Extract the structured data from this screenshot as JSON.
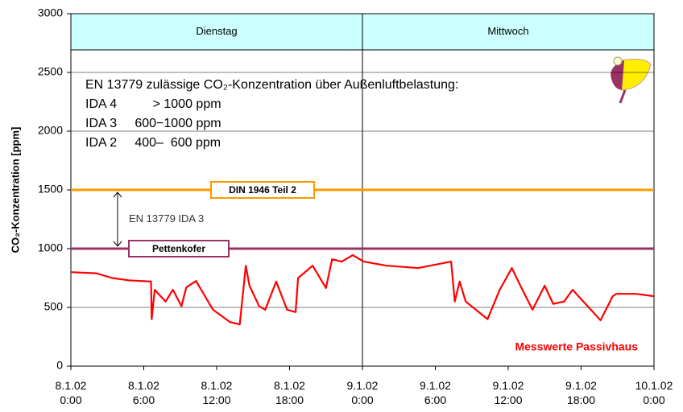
{
  "chart_data": {
    "type": "line",
    "y_label": "CO₂-Konzentration [ppm]",
    "x": [
      0,
      2.1,
      3.4,
      4.8,
      6.6,
      6.65,
      6.9,
      7.8,
      8.4,
      9.1,
      9.5,
      10.3,
      11.7,
      13.1,
      13.9,
      14.4,
      14.7,
      15.5,
      16.0,
      16.9,
      17.8,
      18.5,
      18.7,
      19.9,
      21.0,
      21.5,
      22.3,
      23.2,
      24.1,
      26.0,
      28.6,
      31.3,
      31.6,
      32.0,
      32.5,
      34.3,
      35.3,
      36.3,
      37.0,
      38.0,
      39.0,
      39.7,
      40.6,
      41.3,
      43.6,
      44.6,
      44.9,
      46.5,
      48
    ],
    "series": [
      {
        "name": "Messwerte Passivhaus",
        "color": "#ff0000",
        "values": [
          800,
          790,
          750,
          730,
          720,
          400,
          650,
          550,
          650,
          510,
          670,
          725,
          480,
          375,
          355,
          855,
          685,
          510,
          480,
          720,
          480,
          460,
          750,
          855,
          665,
          910,
          890,
          945,
          890,
          855,
          835,
          890,
          550,
          720,
          550,
          400,
          650,
          835,
          685,
          480,
          685,
          530,
          550,
          650,
          390,
          595,
          615,
          615,
          595
        ]
      }
    ],
    "xlim": [
      0,
      48
    ],
    "xticks": [
      {
        "value": 0,
        "label": "8.1.02\n0:00"
      },
      {
        "value": 6,
        "label": "8.1.02\n6:00"
      },
      {
        "value": 12,
        "label": "8.1.02\n12:00"
      },
      {
        "value": 18,
        "label": "8.1.02\n18:00"
      },
      {
        "value": 24,
        "label": "9.1.02\n0:00"
      },
      {
        "value": 30,
        "label": "9.1.02\n6:00"
      },
      {
        "value": 36,
        "label": "9.1.02\n12:00"
      },
      {
        "value": 42,
        "label": "9.1.02\n18:00"
      },
      {
        "value": 48,
        "label": "10.1.02\n0:00"
      }
    ],
    "ylim": [
      0,
      3000
    ],
    "yticks": [
      0,
      500,
      1000,
      1500,
      2000,
      2500,
      3000
    ],
    "grid": true,
    "days": [
      {
        "label": "Dienstag",
        "from": 0,
        "to": 24
      },
      {
        "label": "Mittwoch",
        "from": 24,
        "to": 48
      }
    ],
    "reference_lines": [
      {
        "value": 1500,
        "label": "DIN 1946 Teil 2",
        "color": "#ff9900"
      },
      {
        "value": 1000,
        "label": "Pettenkofer",
        "color": "#993366"
      }
    ],
    "range_label": "EN 13779 IDA 3",
    "annotation": [
      "EN 13779 zulässige CO₂-Konzentration über Außenluftbelastung:",
      "IDA 4          > 1000 ppm",
      "IDA 3     600−1000 ppm",
      "IDA 2     400–  600 ppm"
    ]
  }
}
